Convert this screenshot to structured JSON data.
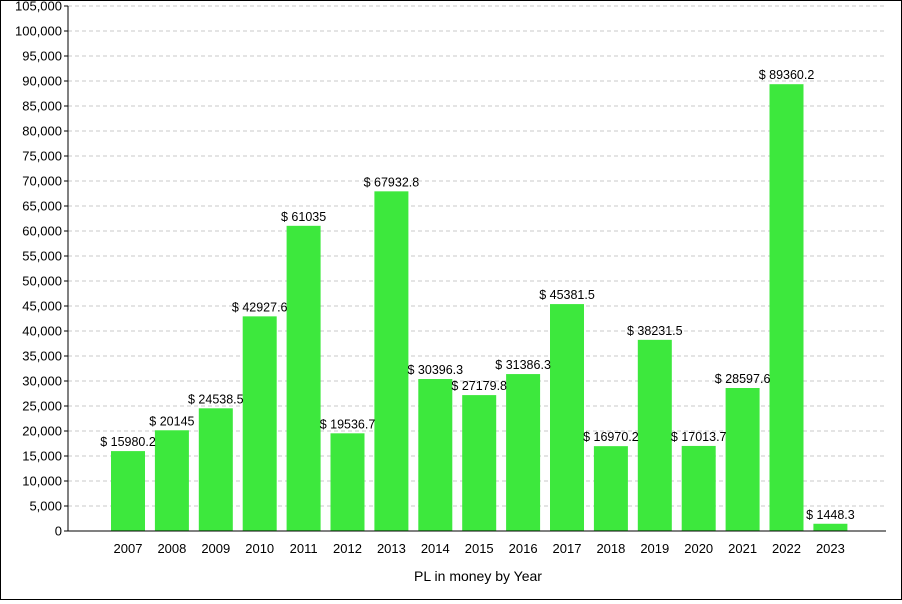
{
  "chart_data": {
    "type": "bar",
    "title": "",
    "xlabel": "PL in money by Year",
    "ylabel": "",
    "categories": [
      "2007",
      "2008",
      "2009",
      "2010",
      "2011",
      "2012",
      "2013",
      "2014",
      "2015",
      "2016",
      "2017",
      "2018",
      "2019",
      "2020",
      "2021",
      "2022",
      "2023"
    ],
    "values": [
      15980.2,
      20145,
      24538.5,
      42927.6,
      61035,
      19536.7,
      67932.8,
      30396.3,
      27179.8,
      31386.3,
      45381.5,
      16970.2,
      38231.5,
      17013.7,
      28597.6,
      89360.2,
      1448.3
    ],
    "data_labels": [
      "$ 15980.2",
      "$ 20145",
      "$ 24538.5",
      "$ 42927.6",
      "$ 61035",
      "$ 19536.7",
      "$ 67932.8",
      "$ 30396.3",
      "$ 27179.8",
      "$ 31386.3",
      "$ 45381.5",
      "$ 16970.2",
      "$ 38231.5",
      "$ 17013.7",
      "$ 28597.6",
      "$ 89360.2",
      "$ 1448.3"
    ],
    "yticks": [
      "0",
      "5,000",
      "10,000",
      "15,000",
      "20,000",
      "25,000",
      "30,000",
      "35,000",
      "40,000",
      "45,000",
      "50,000",
      "55,000",
      "60,000",
      "65,000",
      "70,000",
      "75,000",
      "80,000",
      "85,000",
      "90,000",
      "95,000",
      "100,000",
      "105,000"
    ],
    "ylim": [
      0,
      105000
    ],
    "ytick_step": 5000,
    "grid": true,
    "legend": "none",
    "colors": {
      "bar": "#3de83d",
      "grid": "#c8c8c8",
      "axis": "#000000"
    }
  }
}
